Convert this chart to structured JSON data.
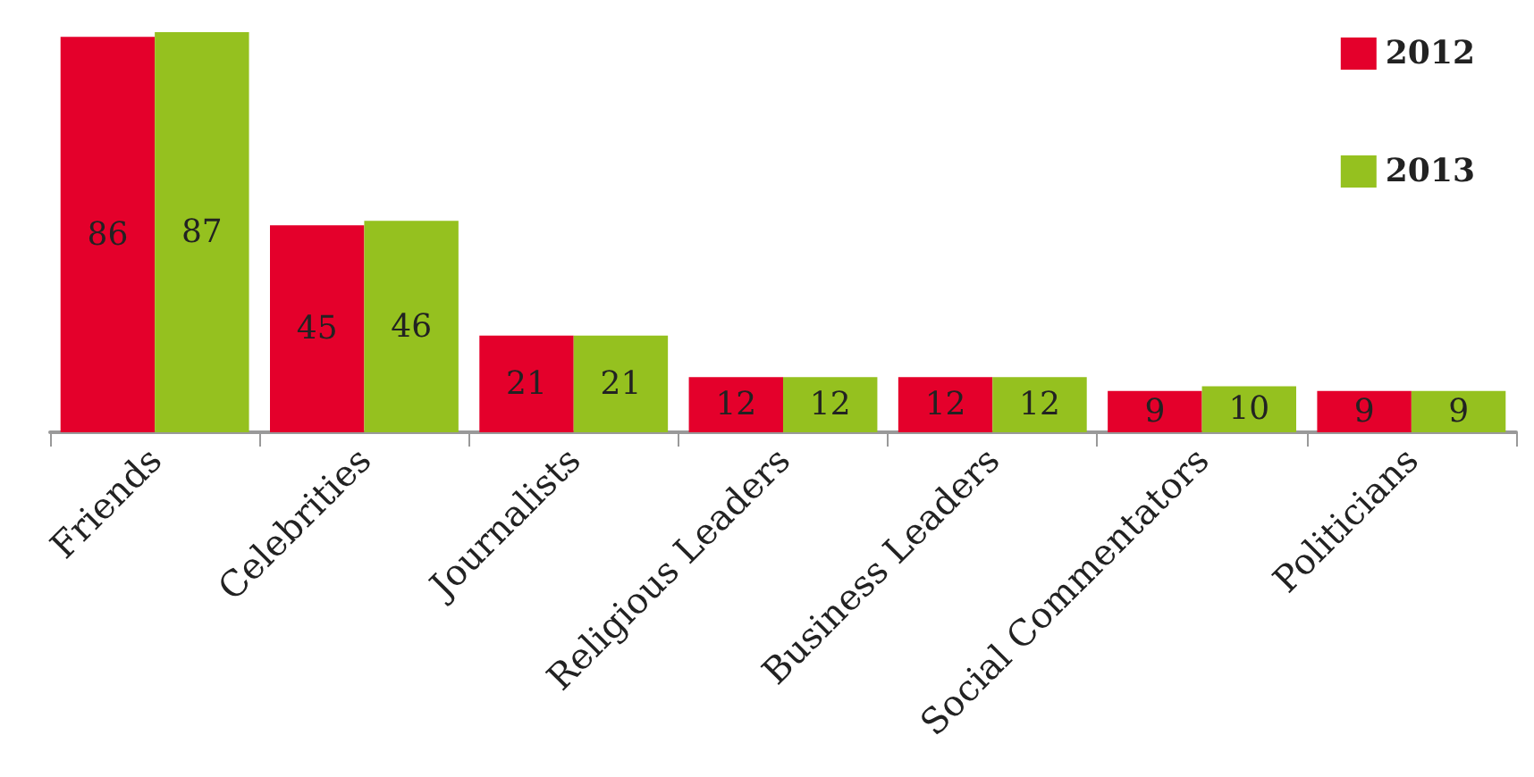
{
  "chart_data": {
    "type": "bar",
    "categories": [
      "Friends",
      "Celebrities",
      "Journalists",
      "Religious Leaders",
      "Business Leaders",
      "Social Commentators",
      "Politicians"
    ],
    "series": [
      {
        "name": "2012",
        "color": "#e4002b",
        "values": [
          86,
          45,
          21,
          12,
          12,
          9,
          9
        ]
      },
      {
        "name": "2013",
        "color": "#95c11f",
        "values": [
          87,
          46,
          21,
          12,
          12,
          10,
          9
        ]
      }
    ],
    "data_labels": true,
    "legend": "top right"
  }
}
